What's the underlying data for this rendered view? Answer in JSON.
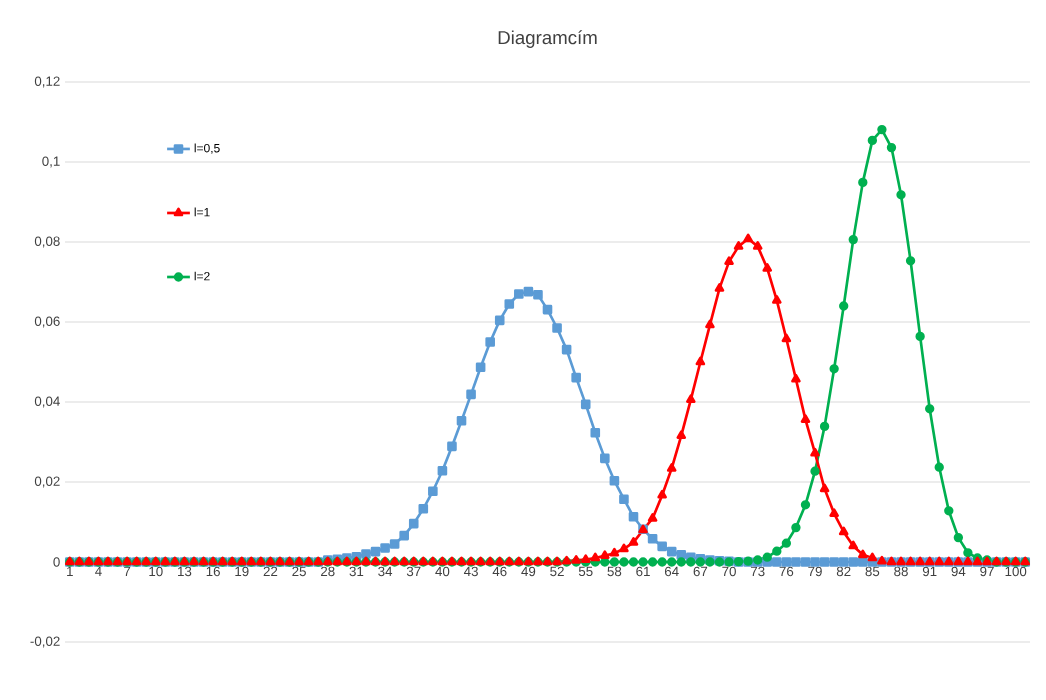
{
  "chart_data": {
    "type": "line",
    "title": "Diagramcím",
    "categories": [
      "1",
      null,
      null,
      "4",
      null,
      null,
      "7",
      null,
      null,
      "10",
      null,
      null,
      "13",
      null,
      null,
      "16",
      null,
      null,
      "19",
      null,
      null,
      "22",
      null,
      null,
      "25",
      null,
      null,
      "28",
      null,
      null,
      "31",
      null,
      null,
      "34",
      null,
      null,
      "37",
      null,
      null,
      "40",
      null,
      null,
      "43",
      null,
      null,
      "46",
      null,
      null,
      "49",
      null,
      null,
      "52",
      null,
      null,
      "55",
      null,
      null,
      "58",
      null,
      null,
      "61",
      null,
      null,
      "64",
      null,
      null,
      "67",
      null,
      null,
      "70",
      null,
      null,
      "73",
      null,
      null,
      "76",
      null,
      null,
      "79",
      null,
      null,
      "82",
      null,
      null,
      "85",
      null,
      null,
      "88",
      null,
      null,
      "91",
      null,
      null,
      "94",
      null,
      null,
      "97",
      null,
      null,
      "100",
      null
    ],
    "series": [
      {
        "name": "l=0,5",
        "color": "#5b9bd5",
        "marker": "square",
        "values": [
          0,
          0,
          0,
          0,
          0,
          0,
          0,
          0,
          0,
          0,
          0,
          0,
          0,
          0,
          0,
          0,
          0,
          0,
          0,
          0,
          0,
          0,
          0,
          0,
          0,
          0,
          0,
          0.0005,
          0.0007,
          0.001,
          0.0013,
          0.002,
          0.0026,
          0.0035,
          0.0045,
          0.0066,
          0.0096,
          0.0133,
          0.0177,
          0.0228,
          0.0289,
          0.0353,
          0.0419,
          0.0487,
          0.055,
          0.0604,
          0.0645,
          0.067,
          0.0676,
          0.0668,
          0.0631,
          0.0585,
          0.0531,
          0.0461,
          0.0394,
          0.0323,
          0.0259,
          0.0203,
          0.0157,
          0.0113,
          0.0082,
          0.0058,
          0.0039,
          0.0026,
          0.0018,
          0.0012,
          0.0008,
          0.0005,
          0.0003,
          0.0002,
          0,
          0,
          0,
          0,
          0,
          0,
          0,
          0,
          0,
          0,
          0,
          0,
          0,
          0,
          0,
          0,
          0,
          0,
          0,
          0,
          0,
          0,
          0,
          0,
          0,
          0,
          0,
          0,
          0,
          0,
          0
        ]
      },
      {
        "name": "l=1",
        "color": "#ff0000",
        "marker": "triangle",
        "values": [
          0,
          0,
          0,
          0,
          0,
          0,
          0,
          0,
          0,
          0,
          0,
          0,
          0,
          0,
          0,
          0,
          0,
          0,
          0,
          0,
          0,
          0,
          0,
          0,
          0,
          0,
          0,
          0,
          0,
          0,
          0,
          0,
          0,
          0,
          0,
          0,
          0,
          0,
          0,
          0,
          0,
          0,
          0,
          0,
          0,
          0,
          0,
          0,
          0,
          0,
          0,
          0,
          0.0002,
          0.0004,
          0.0006,
          0.001,
          0.0016,
          0.0022,
          0.0033,
          0.0049,
          0.008,
          0.0109,
          0.0167,
          0.0234,
          0.0316,
          0.0406,
          0.05,
          0.0593,
          0.0684,
          0.0751,
          0.0789,
          0.0808,
          0.0789,
          0.0734,
          0.0654,
          0.0558,
          0.0457,
          0.0356,
          0.0272,
          0.0183,
          0.0121,
          0.0075,
          0.004,
          0.0018,
          0.001,
          0.0002,
          0,
          0,
          0,
          0,
          0,
          0,
          0,
          0,
          0,
          0,
          0,
          0,
          0,
          0,
          0
        ]
      },
      {
        "name": "l=2",
        "color": "#00b050",
        "marker": "circle",
        "values": [
          0,
          0,
          0,
          0,
          0,
          0,
          0,
          0,
          0,
          0,
          0,
          0,
          0,
          0,
          0,
          0,
          0,
          0,
          0,
          0,
          0,
          0,
          0,
          0,
          0,
          0,
          0,
          0,
          0,
          0,
          0,
          0,
          0,
          0,
          0,
          0,
          0,
          0,
          0,
          0,
          0,
          0,
          0,
          0,
          0,
          0,
          0,
          0,
          0,
          0,
          0,
          0,
          0,
          0,
          0,
          0,
          0,
          0,
          0,
          0,
          0,
          0,
          0,
          0,
          0,
          0,
          0,
          0,
          0,
          0,
          0.0001,
          0.0002,
          0.0005,
          0.0012,
          0.0027,
          0.0047,
          0.0086,
          0.0143,
          0.0227,
          0.0339,
          0.0483,
          0.064,
          0.0806,
          0.0949,
          0.1054,
          0.1081,
          0.1036,
          0.0918,
          0.0753,
          0.0564,
          0.0383,
          0.0237,
          0.0128,
          0.0061,
          0.0023,
          0.001,
          0.0005,
          0,
          0,
          0,
          0
        ]
      }
    ],
    "ylim": [
      -0.02,
      0.12
    ],
    "yticks": [
      {
        "value": -0.02,
        "label": "-0,02"
      },
      {
        "value": 0,
        "label": "0"
      },
      {
        "value": 0.02,
        "label": "0,02"
      },
      {
        "value": 0.04,
        "label": "0,04"
      },
      {
        "value": 0.06,
        "label": "0,06"
      },
      {
        "value": 0.08,
        "label": "0,08"
      },
      {
        "value": 0.1,
        "label": "0,1"
      },
      {
        "value": 0.12,
        "label": "0,12"
      }
    ],
    "grid": "y",
    "legend": "top left"
  }
}
